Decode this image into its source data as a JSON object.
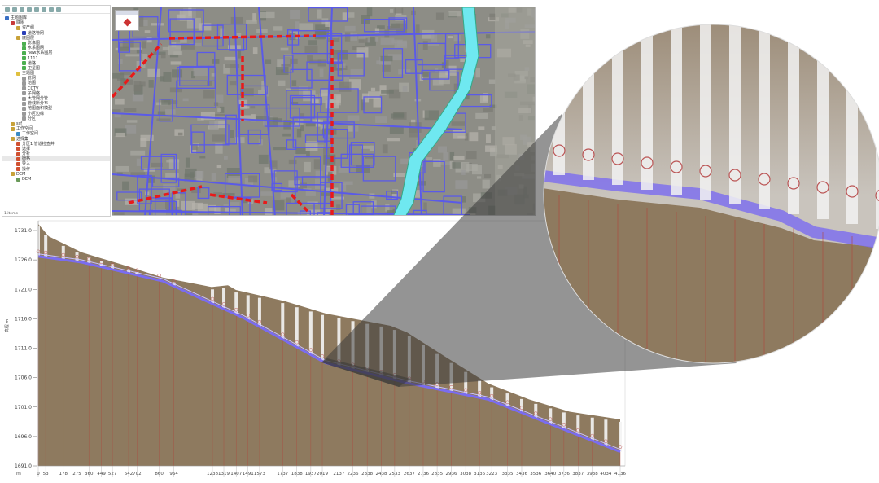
{
  "tree": {
    "nodes": [
      {
        "label": "主题图库",
        "level": 0,
        "icon": "globe-icon",
        "color": "#3a6fc4"
      },
      {
        "label": "底图",
        "level": 1,
        "icon": "folder-icon",
        "color": "#c83a3a"
      },
      {
        "label": "资产组",
        "level": 2,
        "icon": "folder-icon",
        "color": "#c8a23a"
      },
      {
        "label": "道路管网",
        "level": 3,
        "icon": "layer-icon",
        "color": "#2a3fb8"
      },
      {
        "label": "底图层",
        "level": 2,
        "icon": "folder-icon",
        "color": "#c8a23a"
      },
      {
        "label": "影像图",
        "level": 3,
        "icon": "layer-icon",
        "color": "#4caf50"
      },
      {
        "label": "水系图网",
        "level": 3,
        "icon": "layer-icon",
        "color": "#4caf50"
      },
      {
        "label": "new水系图层",
        "level": 3,
        "icon": "layer-icon",
        "color": "#4caf50"
      },
      {
        "label": "1111",
        "level": 3,
        "icon": "layer-icon",
        "color": "#4caf50"
      },
      {
        "label": "道路",
        "level": 3,
        "icon": "layer-icon",
        "color": "#4caf50"
      },
      {
        "label": "卫星图",
        "level": 3,
        "icon": "layer-icon",
        "color": "#4caf50"
      },
      {
        "label": "主题图",
        "level": 2,
        "icon": "folder-icon",
        "color": "#e0c040"
      },
      {
        "label": "管网",
        "level": 3,
        "icon": "line-icon",
        "color": "#999"
      },
      {
        "label": "范围",
        "level": 3,
        "icon": "line-icon",
        "color": "#999"
      },
      {
        "label": "CCTV",
        "level": 3,
        "icon": "line-icon",
        "color": "#999"
      },
      {
        "label": "子网络",
        "level": 3,
        "icon": "line-icon",
        "color": "#999"
      },
      {
        "label": "大管网分管",
        "level": 3,
        "icon": "line-icon",
        "color": "#999"
      },
      {
        "label": "管线所分布",
        "level": 3,
        "icon": "line-icon",
        "color": "#999"
      },
      {
        "label": "地图面积模型",
        "level": 3,
        "icon": "line-icon",
        "color": "#999"
      },
      {
        "label": "小区边缘",
        "level": 3,
        "icon": "line-icon",
        "color": "#999"
      },
      {
        "label": "分区",
        "level": 3,
        "icon": "line-icon",
        "color": "#999"
      },
      {
        "label": "ssf",
        "level": 1,
        "icon": "folder-icon",
        "color": "#c8a23a"
      },
      {
        "label": "工作空间",
        "level": 1,
        "icon": "folder-icon",
        "color": "#c8a23a"
      },
      {
        "label": "工作空间",
        "level": 2,
        "icon": "workspace-icon",
        "color": "#3a8ac4"
      },
      {
        "label": "选择集",
        "level": 1,
        "icon": "folder-icon",
        "color": "#c8a23a"
      },
      {
        "label": "分区1 管道检查井",
        "level": 2,
        "icon": "checkbox-icon",
        "color": "#d05030"
      },
      {
        "label": "选择",
        "level": 2,
        "icon": "checkbox-icon",
        "color": "#d05030"
      },
      {
        "label": "分析",
        "level": 2,
        "icon": "checkbox-icon",
        "color": "#d05030"
      },
      {
        "label": "栅格",
        "level": 2,
        "icon": "checkbox-icon",
        "color": "#d05030",
        "selected": true
      },
      {
        "label": "导入",
        "level": 2,
        "icon": "checkbox-icon",
        "color": "#d05030"
      },
      {
        "label": "操作",
        "level": 2,
        "icon": "checkbox-icon",
        "color": "#d05030"
      },
      {
        "label": "DEM",
        "level": 1,
        "icon": "folder-icon",
        "color": "#c8a23a"
      },
      {
        "label": "DEM",
        "level": 2,
        "icon": "raster-icon",
        "color": "#6a9a5a"
      }
    ],
    "status": "1 items"
  },
  "map": {
    "river_color": "#6fe8f0",
    "pipe_color": "#5a5ae8",
    "highlight_color": "#e81a1a"
  },
  "chart_data": {
    "type": "area",
    "ylabel": "高程 m",
    "xunit": "m",
    "ylim": [
      1691.0,
      1731.0
    ],
    "yticks": [
      "1731.0",
      "1726.0",
      "1721.0",
      "1716.0",
      "1711.0",
      "1706.0",
      "1701.0",
      "1696.0",
      "1691.0"
    ],
    "xlim": [
      0,
      4136
    ],
    "stations": [
      0,
      53,
      178,
      275,
      360,
      449,
      527,
      642,
      702,
      860,
      964,
      1238,
      1319,
      1407,
      1491,
      1573,
      1737,
      1838,
      1937,
      2019,
      2137,
      2236,
      2338,
      2438,
      2533,
      2637,
      2736,
      2835,
      2936,
      3038,
      3136,
      3223,
      3335,
      3436,
      3536,
      3640,
      3736,
      3837,
      3938,
      4034,
      4136
    ],
    "series": [
      {
        "key": "ground",
        "x": [
          0,
          75,
          307,
          596,
          885,
          1232,
          1348,
          1405,
          1752,
          2042,
          2504,
          2620,
          2909,
          3198,
          3488,
          3777,
          4136
        ],
        "y": [
          1732.1,
          1730.0,
          1727.3,
          1725.2,
          1723.0,
          1721.4,
          1721.7,
          1720.9,
          1719.0,
          1716.9,
          1714.8,
          1713.7,
          1709.3,
          1705.0,
          1702.3,
          1700.2,
          1698.9
        ]
      },
      {
        "key": "pipe_invert",
        "x": [
          0,
          307,
          885,
          1463,
          2042,
          2620,
          3198,
          3777,
          4136
        ],
        "y": [
          1726.6,
          1725.6,
          1722.4,
          1716.1,
          1708.5,
          1705.1,
          1702.3,
          1696.8,
          1693.4
        ]
      }
    ],
    "colors": {
      "ground": "#8e7a5f",
      "pipe": "#7a6cf0",
      "manhole": "#f4f4f4",
      "grid": "#b0443a"
    }
  }
}
